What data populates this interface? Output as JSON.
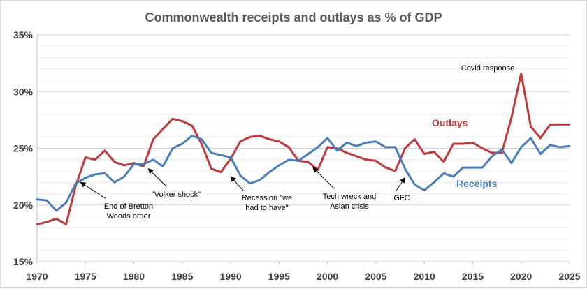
{
  "chart_data": {
    "type": "line",
    "title": "Commonwealth receipts and outlays as % of GDP",
    "xlim": [
      1970,
      2025
    ],
    "ylim": [
      15,
      35
    ],
    "x_ticks": [
      "1970",
      "1975",
      "1980",
      "1985",
      "1990",
      "1995",
      "2000",
      "2005",
      "2010",
      "2015",
      "2020",
      "2025"
    ],
    "y_ticks": [
      "15%",
      "20%",
      "25%",
      "30%",
      "35%"
    ],
    "grid": true,
    "x": [
      1970,
      1971,
      1972,
      1973,
      1974,
      1975,
      1976,
      1977,
      1978,
      1979,
      1980,
      1981,
      1982,
      1983,
      1984,
      1985,
      1986,
      1987,
      1988,
      1989,
      1990,
      1991,
      1992,
      1993,
      1994,
      1995,
      1996,
      1997,
      1998,
      1999,
      2000,
      2001,
      2002,
      2003,
      2004,
      2005,
      2006,
      2007,
      2008,
      2009,
      2010,
      2011,
      2012,
      2013,
      2014,
      2015,
      2016,
      2017,
      2018,
      2019,
      2020,
      2021,
      2022,
      2023,
      2024,
      2025
    ],
    "series": [
      {
        "name": "Outlays",
        "color": "#c0393b",
        "values": [
          18.3,
          18.5,
          18.8,
          18.3,
          21.7,
          24.2,
          24.0,
          24.8,
          23.8,
          23.5,
          23.7,
          23.4,
          25.8,
          26.7,
          27.6,
          27.4,
          27.0,
          25.4,
          23.2,
          22.9,
          24.1,
          25.6,
          26.0,
          26.1,
          25.8,
          25.6,
          25.1,
          23.9,
          23.8,
          23.1,
          25.1,
          25.0,
          24.6,
          24.3,
          24.0,
          23.9,
          23.3,
          23.0,
          25.0,
          25.8,
          24.5,
          24.7,
          23.8,
          25.4,
          25.4,
          25.5,
          25.0,
          24.6,
          24.6,
          27.7,
          31.6,
          26.9,
          25.9,
          27.1,
          27.1,
          27.1
        ]
      },
      {
        "name": "Receipts",
        "color": "#4a7ebb",
        "values": [
          20.5,
          20.4,
          19.5,
          20.2,
          21.9,
          22.4,
          22.7,
          22.8,
          22.0,
          22.5,
          23.6,
          23.6,
          24.0,
          23.4,
          25.0,
          25.4,
          26.1,
          25.8,
          24.6,
          24.4,
          24.2,
          22.6,
          21.9,
          22.2,
          22.9,
          23.5,
          24.0,
          23.9,
          24.5,
          25.1,
          25.9,
          24.8,
          25.5,
          25.2,
          25.5,
          25.6,
          25.1,
          25.1,
          23.2,
          21.8,
          21.3,
          22.0,
          22.8,
          22.5,
          23.3,
          23.3,
          23.3,
          24.3,
          24.9,
          23.7,
          25.1,
          25.9,
          24.5,
          25.3,
          25.1,
          25.2
        ]
      }
    ],
    "series_labels": {
      "outlays": "Outlays",
      "receipts": "Receipts"
    },
    "annotations": [
      {
        "id": "bretton",
        "lines": [
          "End of Bretton",
          "Woods order"
        ],
        "target": [
          1974.5,
          22.0
        ]
      },
      {
        "id": "volker",
        "lines": [
          "\"Volker shock\""
        ],
        "target": [
          1981.5,
          23.2
        ]
      },
      {
        "id": "recession",
        "lines": [
          "Recession \"we",
          "had to have\""
        ],
        "target": [
          1990.0,
          22.5
        ]
      },
      {
        "id": "techwreck",
        "lines": [
          "Tech wreck and",
          "Asian crisis"
        ],
        "target": [
          1998.5,
          23.3
        ]
      },
      {
        "id": "gfc",
        "lines": [
          "GFC"
        ],
        "target": [
          2008.0,
          22.4
        ]
      },
      {
        "id": "covid",
        "lines": [
          "Covid response"
        ],
        "target": [
          2020.0,
          31.6
        ]
      }
    ]
  }
}
